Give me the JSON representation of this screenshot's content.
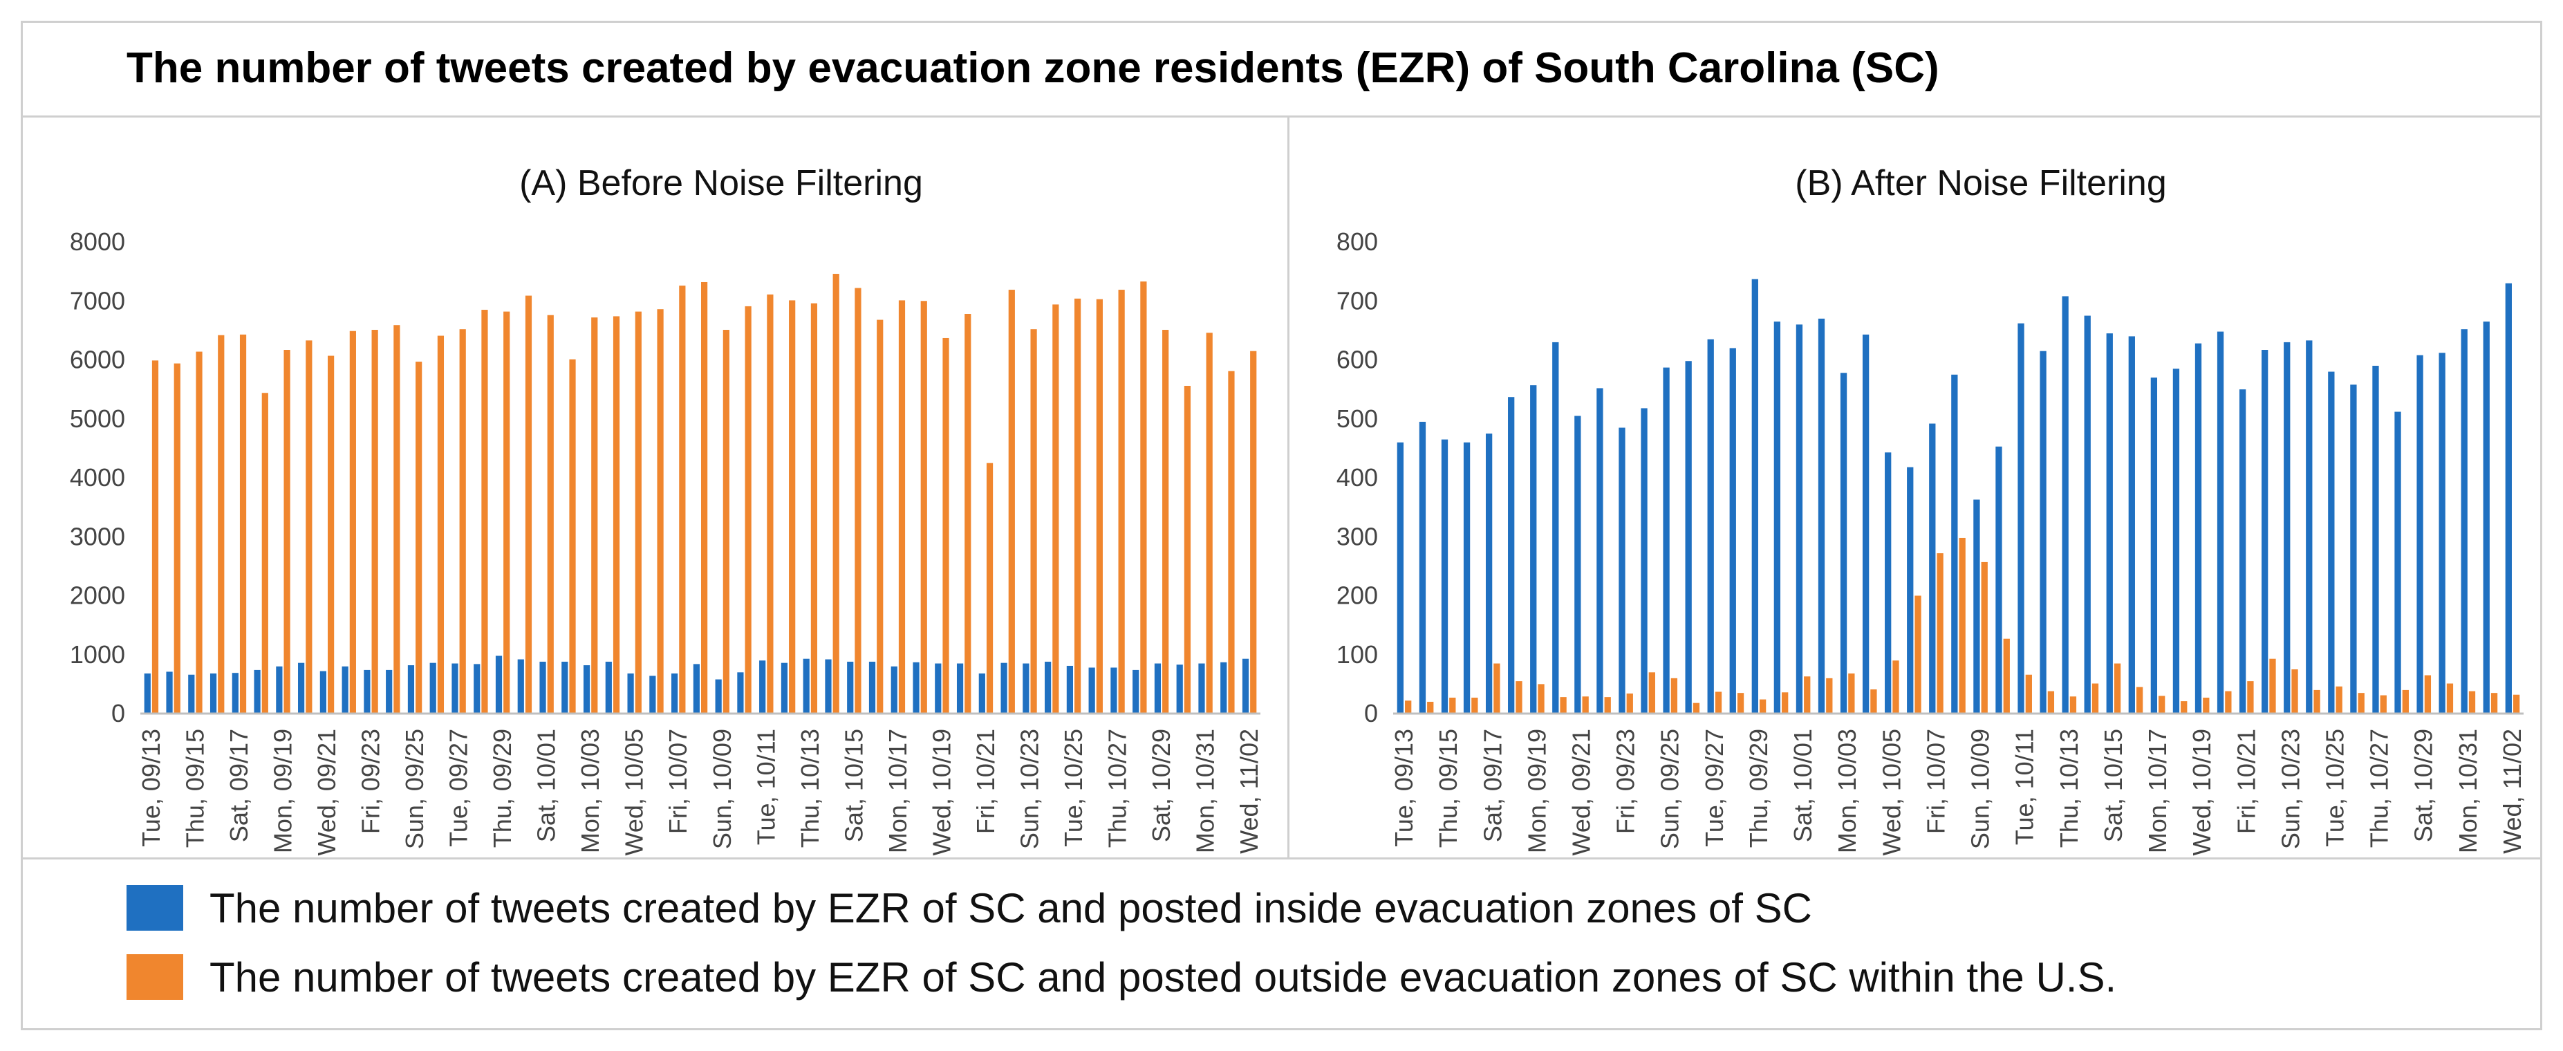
{
  "title": "The number of tweets created by evacuation zone residents (EZR) of South Carolina (SC)",
  "colors": {
    "inside": "#1f70c1",
    "outside": "#f0862e"
  },
  "legend": {
    "inside": "The number of tweets created by EZR of SC and posted inside evacuation zones of SC",
    "outside": "The number of tweets created by EZR of SC and posted outside evacuation zones of SC within the U.S."
  },
  "chart_data": [
    {
      "type": "bar",
      "title": "(A) Before Noise Filtering",
      "xlabel": "",
      "ylabel": "",
      "ylim": [
        0,
        8000
      ],
      "yticks": [
        0,
        1000,
        2000,
        3000,
        4000,
        5000,
        6000,
        7000,
        8000
      ],
      "categories": [
        "Tue, 09/13",
        "Wed, 09/14",
        "Thu, 09/15",
        "Fri, 09/16",
        "Sat, 09/17",
        "Sun, 09/18",
        "Mon, 09/19",
        "Tue, 09/20",
        "Wed, 09/21",
        "Thu, 09/22",
        "Fri, 09/23",
        "Sat, 09/24",
        "Sun, 09/25",
        "Mon, 09/26",
        "Tue, 09/27",
        "Wed, 09/28",
        "Thu, 09/29",
        "Fri, 09/30",
        "Sat, 10/01",
        "Sun, 10/02",
        "Mon, 10/03",
        "Tue, 10/04",
        "Wed, 10/05",
        "Thu, 10/06",
        "Fri, 10/07",
        "Sat, 10/08",
        "Sun, 10/09",
        "Mon, 10/10",
        "Tue, 10/11",
        "Wed, 10/12",
        "Thu, 10/13",
        "Fri, 10/14",
        "Sat, 10/15",
        "Sun, 10/16",
        "Mon, 10/17",
        "Tue, 10/18",
        "Wed, 10/19",
        "Thu, 10/20",
        "Fri, 10/21",
        "Sat, 10/22",
        "Sun, 10/23",
        "Mon, 10/24",
        "Tue, 10/25",
        "Wed, 10/26",
        "Thu, 10/27",
        "Fri, 10/28",
        "Sat, 10/29",
        "Sun, 10/30",
        "Mon, 10/31",
        "Tue, 11/01",
        "Wed, 11/02"
      ],
      "tick_labels_shown": [
        "Tue, 09/13",
        "Thu, 09/15",
        "Sat, 09/17",
        "Mon, 09/19",
        "Wed, 09/21",
        "Fri, 09/23",
        "Sun, 09/25",
        "Tue, 09/27",
        "Thu, 09/29",
        "Sat, 10/01",
        "Mon, 10/03",
        "Wed, 10/05",
        "Fri, 10/07",
        "Sun, 10/09",
        "Tue, 10/11",
        "Thu, 10/13",
        "Sat, 10/15",
        "Mon, 10/17",
        "Wed, 10/19",
        "Fri, 10/21",
        "Sun, 10/23",
        "Tue, 10/25",
        "Thu, 10/27",
        "Sat, 10/29",
        "Mon, 10/31",
        "Wed, 11/02"
      ],
      "series": [
        {
          "name": "The number of tweets created by EZR of SC and posted inside evacuation zones of SC",
          "values": [
            680,
            710,
            660,
            680,
            690,
            740,
            800,
            860,
            720,
            800,
            740,
            740,
            820,
            860,
            850,
            840,
            980,
            920,
            880,
            880,
            820,
            880,
            680,
            640,
            680,
            840,
            580,
            700,
            900,
            860,
            930,
            920,
            880,
            880,
            800,
            870,
            850,
            850,
            680,
            860,
            850,
            880,
            810,
            780,
            780,
            740,
            850,
            830,
            850,
            870,
            930
          ]
        },
        {
          "name": "The number of tweets created by EZR of SC and posted outside evacuation zones of SC within the U.S.",
          "values": [
            5990,
            5940,
            6140,
            6420,
            6430,
            5440,
            6170,
            6330,
            6070,
            6490,
            6510,
            6590,
            5970,
            6410,
            6520,
            6850,
            6820,
            7090,
            6760,
            6010,
            6720,
            6740,
            6820,
            6860,
            7260,
            7320,
            6510,
            6910,
            7110,
            7010,
            6960,
            7460,
            7220,
            6680,
            7010,
            7000,
            6370,
            6780,
            4250,
            7190,
            6520,
            6940,
            7040,
            7030,
            7190,
            7330,
            6510,
            5560,
            6460,
            5810,
            6150
          ]
        }
      ]
    },
    {
      "type": "bar",
      "title": "(B) After Noise Filtering",
      "xlabel": "",
      "ylabel": "",
      "ylim": [
        0,
        800
      ],
      "yticks": [
        0,
        100,
        200,
        300,
        400,
        500,
        600,
        700,
        800
      ],
      "categories": [
        "Tue, 09/13",
        "Wed, 09/14",
        "Thu, 09/15",
        "Fri, 09/16",
        "Sat, 09/17",
        "Sun, 09/18",
        "Mon, 09/19",
        "Tue, 09/20",
        "Wed, 09/21",
        "Thu, 09/22",
        "Fri, 09/23",
        "Sat, 09/24",
        "Sun, 09/25",
        "Mon, 09/26",
        "Tue, 09/27",
        "Wed, 09/28",
        "Thu, 09/29",
        "Fri, 09/30",
        "Sat, 10/01",
        "Sun, 10/02",
        "Mon, 10/03",
        "Tue, 10/04",
        "Wed, 10/05",
        "Thu, 10/06",
        "Fri, 10/07",
        "Sat, 10/08",
        "Sun, 10/09",
        "Mon, 10/10",
        "Tue, 10/11",
        "Wed, 10/12",
        "Thu, 10/13",
        "Fri, 10/14",
        "Sat, 10/15",
        "Sun, 10/16",
        "Mon, 10/17",
        "Tue, 10/18",
        "Wed, 10/19",
        "Thu, 10/20",
        "Fri, 10/21",
        "Sat, 10/22",
        "Sun, 10/23",
        "Mon, 10/24",
        "Tue, 10/25",
        "Wed, 10/26",
        "Thu, 10/27",
        "Fri, 10/28",
        "Sat, 10/29",
        "Sun, 10/30",
        "Mon, 10/31",
        "Tue, 11/01",
        "Wed, 11/02"
      ],
      "tick_labels_shown": [
        "Tue, 09/13",
        "Thu, 09/15",
        "Sat, 09/17",
        "Mon, 09/19",
        "Wed, 09/21",
        "Fri, 09/23",
        "Sun, 09/25",
        "Tue, 09/27",
        "Thu, 09/29",
        "Sat, 10/01",
        "Mon, 10/03",
        "Wed, 10/05",
        "Fri, 10/07",
        "Sun, 10/09",
        "Tue, 10/11",
        "Thu, 10/13",
        "Sat, 10/15",
        "Mon, 10/17",
        "Wed, 10/19",
        "Fri, 10/21",
        "Sun, 10/23",
        "Tue, 10/25",
        "Thu, 10/27",
        "Sat, 10/29",
        "Mon, 10/31",
        "Wed, 11/02"
      ],
      "series": [
        {
          "name": "The number of tweets created by EZR of SC and posted inside evacuation zones of SC",
          "values": [
            460,
            495,
            465,
            460,
            475,
            537,
            557,
            630,
            505,
            552,
            485,
            518,
            587,
            598,
            635,
            620,
            737,
            665,
            660,
            670,
            578,
            643,
            443,
            418,
            492,
            575,
            363,
            453,
            662,
            615,
            708,
            675,
            645,
            640,
            570,
            585,
            628,
            648,
            550,
            617,
            630,
            633,
            580,
            558,
            590,
            512,
            608,
            612,
            652,
            665,
            730
          ]
        },
        {
          "name": "The number of tweets created by EZR of SC and posted outside evacuation zones of SC within the U.S.",
          "values": [
            22,
            20,
            27,
            27,
            85,
            55,
            50,
            28,
            29,
            28,
            34,
            70,
            60,
            18,
            37,
            35,
            24,
            36,
            63,
            60,
            68,
            41,
            90,
            200,
            272,
            298,
            257,
            127,
            66,
            38,
            29,
            51,
            85,
            45,
            30,
            21,
            27,
            38,
            55,
            93,
            75,
            40,
            46,
            35,
            31,
            40,
            65,
            51,
            38,
            35,
            32
          ]
        }
      ]
    }
  ]
}
